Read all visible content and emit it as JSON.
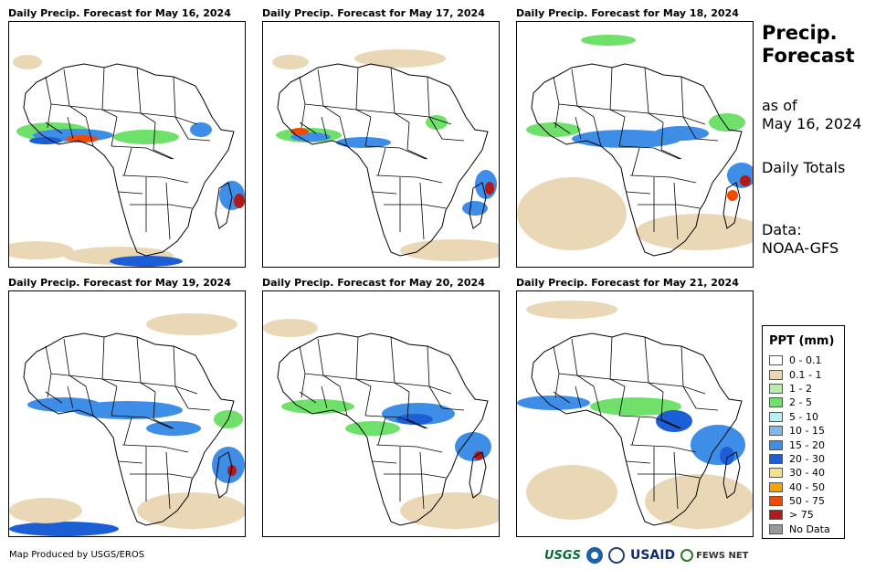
{
  "panels": [
    {
      "title": "Daily Precip. Forecast for May 16, 2024"
    },
    {
      "title": "Daily Precip. Forecast for May 17, 2024"
    },
    {
      "title": "Daily Precip. Forecast for May 18, 2024"
    },
    {
      "title": "Daily Precip. Forecast for May 19, 2024"
    },
    {
      "title": "Daily Precip. Forecast for May 20, 2024"
    },
    {
      "title": "Daily Precip. Forecast for May 21, 2024"
    }
  ],
  "header": {
    "title_line1": "Precip.",
    "title_line2": "Forecast",
    "asof_line1": "as of",
    "asof_line2": "May 16, 2024",
    "daily": "Daily Totals",
    "data_line1": "Data:",
    "data_line2": "NOAA-GFS"
  },
  "legend": {
    "title": "PPT (mm)",
    "items": [
      {
        "label": "0 - 0.1",
        "color": "#ffffff"
      },
      {
        "label": "0.1 - 1",
        "color": "#ead7b6"
      },
      {
        "label": "1 - 2",
        "color": "#b6f0a8"
      },
      {
        "label": "2 - 5",
        "color": "#6fe06a"
      },
      {
        "label": "5 - 10",
        "color": "#b8f0f2"
      },
      {
        "label": "10 - 15",
        "color": "#7fb9ef"
      },
      {
        "label": "15 - 20",
        "color": "#3e8de6"
      },
      {
        "label": "20 - 30",
        "color": "#1c5ed6"
      },
      {
        "label": "30 - 40",
        "color": "#f8e08a"
      },
      {
        "label": "40 - 50",
        "color": "#f5a300"
      },
      {
        "label": "50 - 75",
        "color": "#f24a00"
      },
      {
        "label": "> 75",
        "color": "#b21a1a"
      },
      {
        "label": "No Data",
        "color": "#999999"
      }
    ]
  },
  "footer": {
    "credit": "Map Produced by USGS/EROS",
    "logo_usgs": "USGS",
    "logo_usaid": "USAID",
    "logo_fews": "FEWS NET"
  }
}
